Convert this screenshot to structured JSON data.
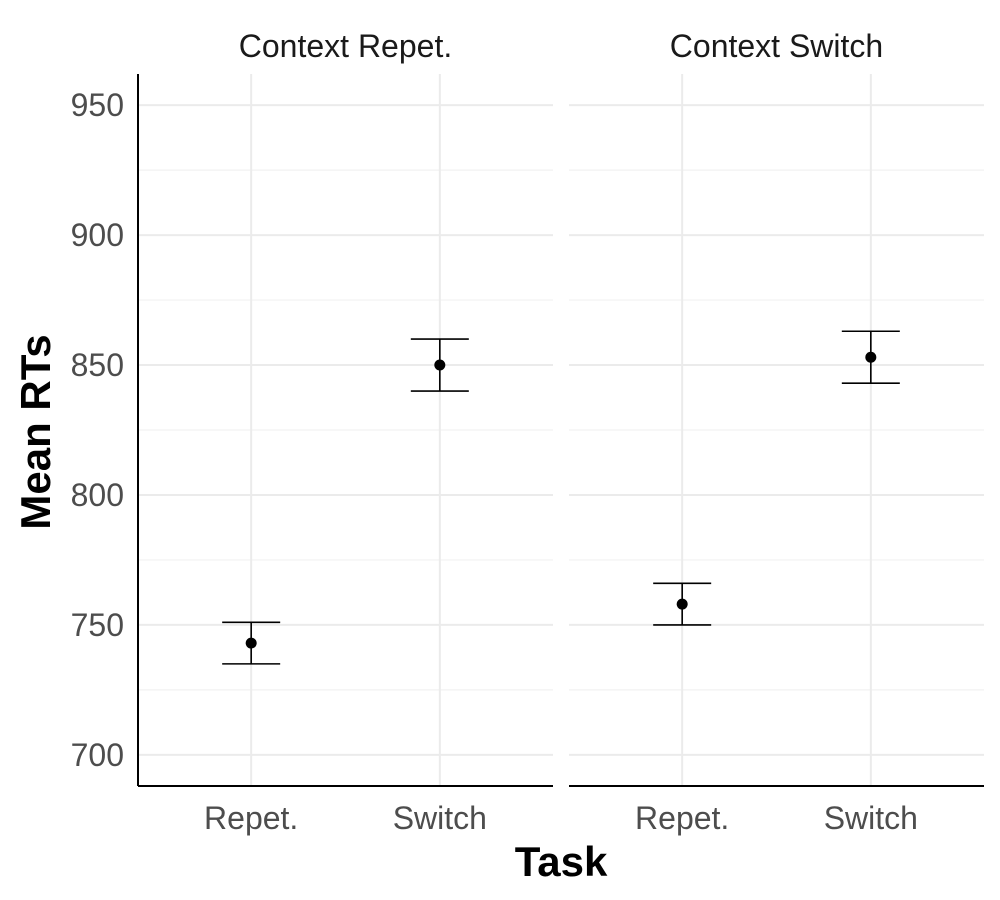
{
  "chart_data": {
    "type": "scatter",
    "subtype": "point-with-errorbars, faceted",
    "xlabel": "Task",
    "ylabel": "Mean RTs",
    "ylim": [
      688,
      962
    ],
    "yticks": [
      700,
      750,
      800,
      850,
      900,
      950
    ],
    "categories": [
      "Repet.",
      "Switch"
    ],
    "grid": true,
    "facets": [
      {
        "title": "Context Repet.",
        "points": [
          {
            "x": "Repet.",
            "y": 743,
            "ymin": 735,
            "ymax": 751
          },
          {
            "x": "Switch",
            "y": 850,
            "ymin": 840,
            "ymax": 860
          }
        ]
      },
      {
        "title": "Context Switch",
        "points": [
          {
            "x": "Repet.",
            "y": 758,
            "ymin": 750,
            "ymax": 766
          },
          {
            "x": "Switch",
            "y": 853,
            "ymin": 843,
            "ymax": 863
          }
        ]
      }
    ]
  }
}
